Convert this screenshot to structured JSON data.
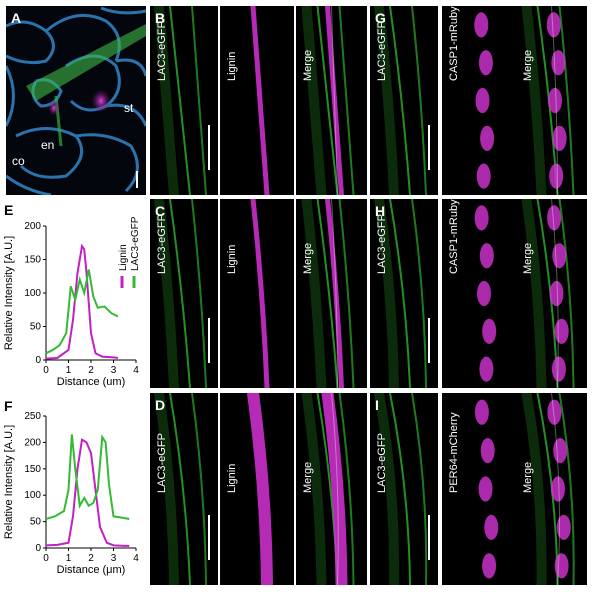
{
  "figure": {
    "panels": {
      "A": {
        "letter": "A",
        "labels": {
          "co": "co",
          "en": "en",
          "st": "st"
        }
      },
      "B": {
        "letter": "B",
        "channels": [
          "LAC3-eGFP",
          "Lignin",
          "Merge"
        ]
      },
      "C": {
        "letter": "C",
        "channels": [
          "LAC3-eGFP",
          "Lignin",
          "Merge"
        ]
      },
      "D": {
        "letter": "D",
        "channels": [
          "LAC3-eGFP",
          "Lignin",
          "Merge"
        ]
      },
      "G": {
        "letter": "G",
        "channels": [
          "LAC3-eGFP",
          "CASP1-mRuby3",
          "Merge"
        ]
      },
      "H": {
        "letter": "H",
        "channels": [
          "LAC3-eGFP",
          "CASP1-mRuby3",
          "Merge"
        ]
      },
      "I": {
        "letter": "I",
        "channels": [
          "LAC3-eGFP",
          "PER64-mCherry",
          "Merge"
        ]
      }
    },
    "colors": {
      "green": "#33cc33",
      "magenta": "#d633d6",
      "blue": "#3aa0e0"
    }
  },
  "chart_data": [
    {
      "panel": "E",
      "type": "line",
      "ylabel": "Relative Intensity [A.U.]",
      "xlabel": "Distance (um)",
      "xlim": [
        0,
        4
      ],
      "ylim": [
        0,
        200
      ],
      "xticks": [
        "0",
        "1",
        "2",
        "3",
        "4"
      ],
      "yticks": [
        "0",
        "50",
        "100",
        "150",
        "200"
      ],
      "legend": [
        "Lignin",
        "LAC3-eGFP"
      ],
      "series": [
        {
          "name": "Lignin",
          "color": "#c41fc4",
          "x": [
            0,
            0.5,
            1.0,
            1.2,
            1.4,
            1.6,
            1.7,
            1.8,
            2.0,
            2.2,
            2.5,
            3.0,
            3.2
          ],
          "y": [
            2,
            3,
            15,
            60,
            130,
            170,
            165,
            130,
            40,
            10,
            5,
            4,
            3
          ]
        },
        {
          "name": "LAC3-eGFP",
          "color": "#33bb33",
          "x": [
            0,
            0.3,
            0.6,
            0.9,
            1.1,
            1.3,
            1.5,
            1.7,
            1.9,
            2.1,
            2.3,
            2.6,
            2.9,
            3.2
          ],
          "y": [
            10,
            15,
            22,
            40,
            110,
            90,
            120,
            100,
            135,
            95,
            78,
            80,
            70,
            65
          ]
        }
      ]
    },
    {
      "panel": "F",
      "type": "line",
      "ylabel": "Relative Intensity [A.U.]",
      "xlabel": "Distance (μm)",
      "xlim": [
        0,
        4
      ],
      "ylim": [
        0,
        250
      ],
      "xticks": [
        "0",
        "1",
        "2",
        "3",
        "4"
      ],
      "yticks": [
        "0",
        "50",
        "100",
        "150",
        "200",
        "250"
      ],
      "series": [
        {
          "name": "Lignin",
          "color": "#c41fc4",
          "x": [
            0,
            0.5,
            1.0,
            1.2,
            1.4,
            1.6,
            1.8,
            2.0,
            2.2,
            2.4,
            2.7,
            3.0,
            3.5,
            3.7
          ],
          "y": [
            5,
            6,
            10,
            60,
            150,
            205,
            200,
            180,
            110,
            40,
            10,
            5,
            4,
            4
          ]
        },
        {
          "name": "LAC3-eGFP",
          "color": "#33bb33",
          "x": [
            0,
            0.4,
            0.8,
            1.0,
            1.15,
            1.3,
            1.5,
            1.7,
            1.9,
            2.1,
            2.3,
            2.5,
            2.65,
            2.8,
            3.0,
            3.3,
            3.7
          ],
          "y": [
            55,
            60,
            70,
            110,
            215,
            150,
            80,
            95,
            80,
            85,
            110,
            210,
            200,
            120,
            60,
            58,
            55
          ]
        }
      ]
    }
  ]
}
